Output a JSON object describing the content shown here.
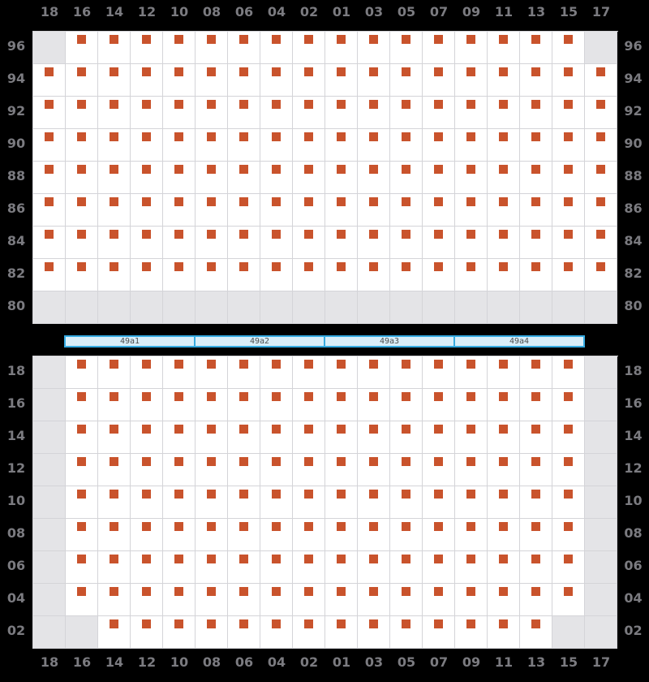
{
  "palette": {
    "background": "#000000",
    "cell_bg": "#ffffff",
    "empty_cell": "#e4e4e7",
    "grid_line": "#d4d4d8",
    "label_text": "#7b7b80",
    "seat_marker": "#c9532c",
    "bar_fill": "#d9eef9",
    "bar_border": "#36abe2",
    "bar_text": "#4d4d4d"
  },
  "columns": [
    "18",
    "16",
    "14",
    "12",
    "10",
    "08",
    "06",
    "04",
    "02",
    "01",
    "03",
    "05",
    "07",
    "09",
    "11",
    "13",
    "15",
    "17"
  ],
  "top_grid": {
    "rows": [
      {
        "label": "96",
        "cells": [
          0,
          1,
          1,
          1,
          1,
          1,
          1,
          1,
          1,
          1,
          1,
          1,
          1,
          1,
          1,
          1,
          1,
          0
        ]
      },
      {
        "label": "94",
        "cells": [
          1,
          1,
          1,
          1,
          1,
          1,
          1,
          1,
          1,
          1,
          1,
          1,
          1,
          1,
          1,
          1,
          1,
          1
        ]
      },
      {
        "label": "92",
        "cells": [
          1,
          1,
          1,
          1,
          1,
          1,
          1,
          1,
          1,
          1,
          1,
          1,
          1,
          1,
          1,
          1,
          1,
          1
        ]
      },
      {
        "label": "90",
        "cells": [
          1,
          1,
          1,
          1,
          1,
          1,
          1,
          1,
          1,
          1,
          1,
          1,
          1,
          1,
          1,
          1,
          1,
          1
        ]
      },
      {
        "label": "88",
        "cells": [
          1,
          1,
          1,
          1,
          1,
          1,
          1,
          1,
          1,
          1,
          1,
          1,
          1,
          1,
          1,
          1,
          1,
          1
        ]
      },
      {
        "label": "86",
        "cells": [
          1,
          1,
          1,
          1,
          1,
          1,
          1,
          1,
          1,
          1,
          1,
          1,
          1,
          1,
          1,
          1,
          1,
          1
        ]
      },
      {
        "label": "84",
        "cells": [
          1,
          1,
          1,
          1,
          1,
          1,
          1,
          1,
          1,
          1,
          1,
          1,
          1,
          1,
          1,
          1,
          1,
          1
        ]
      },
      {
        "label": "82",
        "cells": [
          1,
          1,
          1,
          1,
          1,
          1,
          1,
          1,
          1,
          1,
          1,
          1,
          1,
          1,
          1,
          1,
          1,
          1
        ]
      },
      {
        "label": "80",
        "cells": [
          0,
          0,
          0,
          0,
          0,
          0,
          0,
          0,
          0,
          0,
          0,
          0,
          0,
          0,
          0,
          0,
          0,
          0
        ]
      }
    ]
  },
  "coupler_bar": {
    "segments": [
      "49a1",
      "49a2",
      "49a3",
      "49a4"
    ]
  },
  "bottom_grid": {
    "rows": [
      {
        "label": "18",
        "cells": [
          0,
          1,
          1,
          1,
          1,
          1,
          1,
          1,
          1,
          1,
          1,
          1,
          1,
          1,
          1,
          1,
          1,
          0
        ]
      },
      {
        "label": "16",
        "cells": [
          0,
          1,
          1,
          1,
          1,
          1,
          1,
          1,
          1,
          1,
          1,
          1,
          1,
          1,
          1,
          1,
          1,
          0
        ]
      },
      {
        "label": "14",
        "cells": [
          0,
          1,
          1,
          1,
          1,
          1,
          1,
          1,
          1,
          1,
          1,
          1,
          1,
          1,
          1,
          1,
          1,
          0
        ]
      },
      {
        "label": "12",
        "cells": [
          0,
          1,
          1,
          1,
          1,
          1,
          1,
          1,
          1,
          1,
          1,
          1,
          1,
          1,
          1,
          1,
          1,
          0
        ]
      },
      {
        "label": "10",
        "cells": [
          0,
          1,
          1,
          1,
          1,
          1,
          1,
          1,
          1,
          1,
          1,
          1,
          1,
          1,
          1,
          1,
          1,
          0
        ]
      },
      {
        "label": "08",
        "cells": [
          0,
          1,
          1,
          1,
          1,
          1,
          1,
          1,
          1,
          1,
          1,
          1,
          1,
          1,
          1,
          1,
          1,
          0
        ]
      },
      {
        "label": "06",
        "cells": [
          0,
          1,
          1,
          1,
          1,
          1,
          1,
          1,
          1,
          1,
          1,
          1,
          1,
          1,
          1,
          1,
          1,
          0
        ]
      },
      {
        "label": "04",
        "cells": [
          0,
          1,
          1,
          1,
          1,
          1,
          1,
          1,
          1,
          1,
          1,
          1,
          1,
          1,
          1,
          1,
          1,
          0
        ]
      },
      {
        "label": "02",
        "cells": [
          0,
          0,
          1,
          1,
          1,
          1,
          1,
          1,
          1,
          1,
          1,
          1,
          1,
          1,
          1,
          1,
          0,
          0
        ]
      }
    ]
  }
}
